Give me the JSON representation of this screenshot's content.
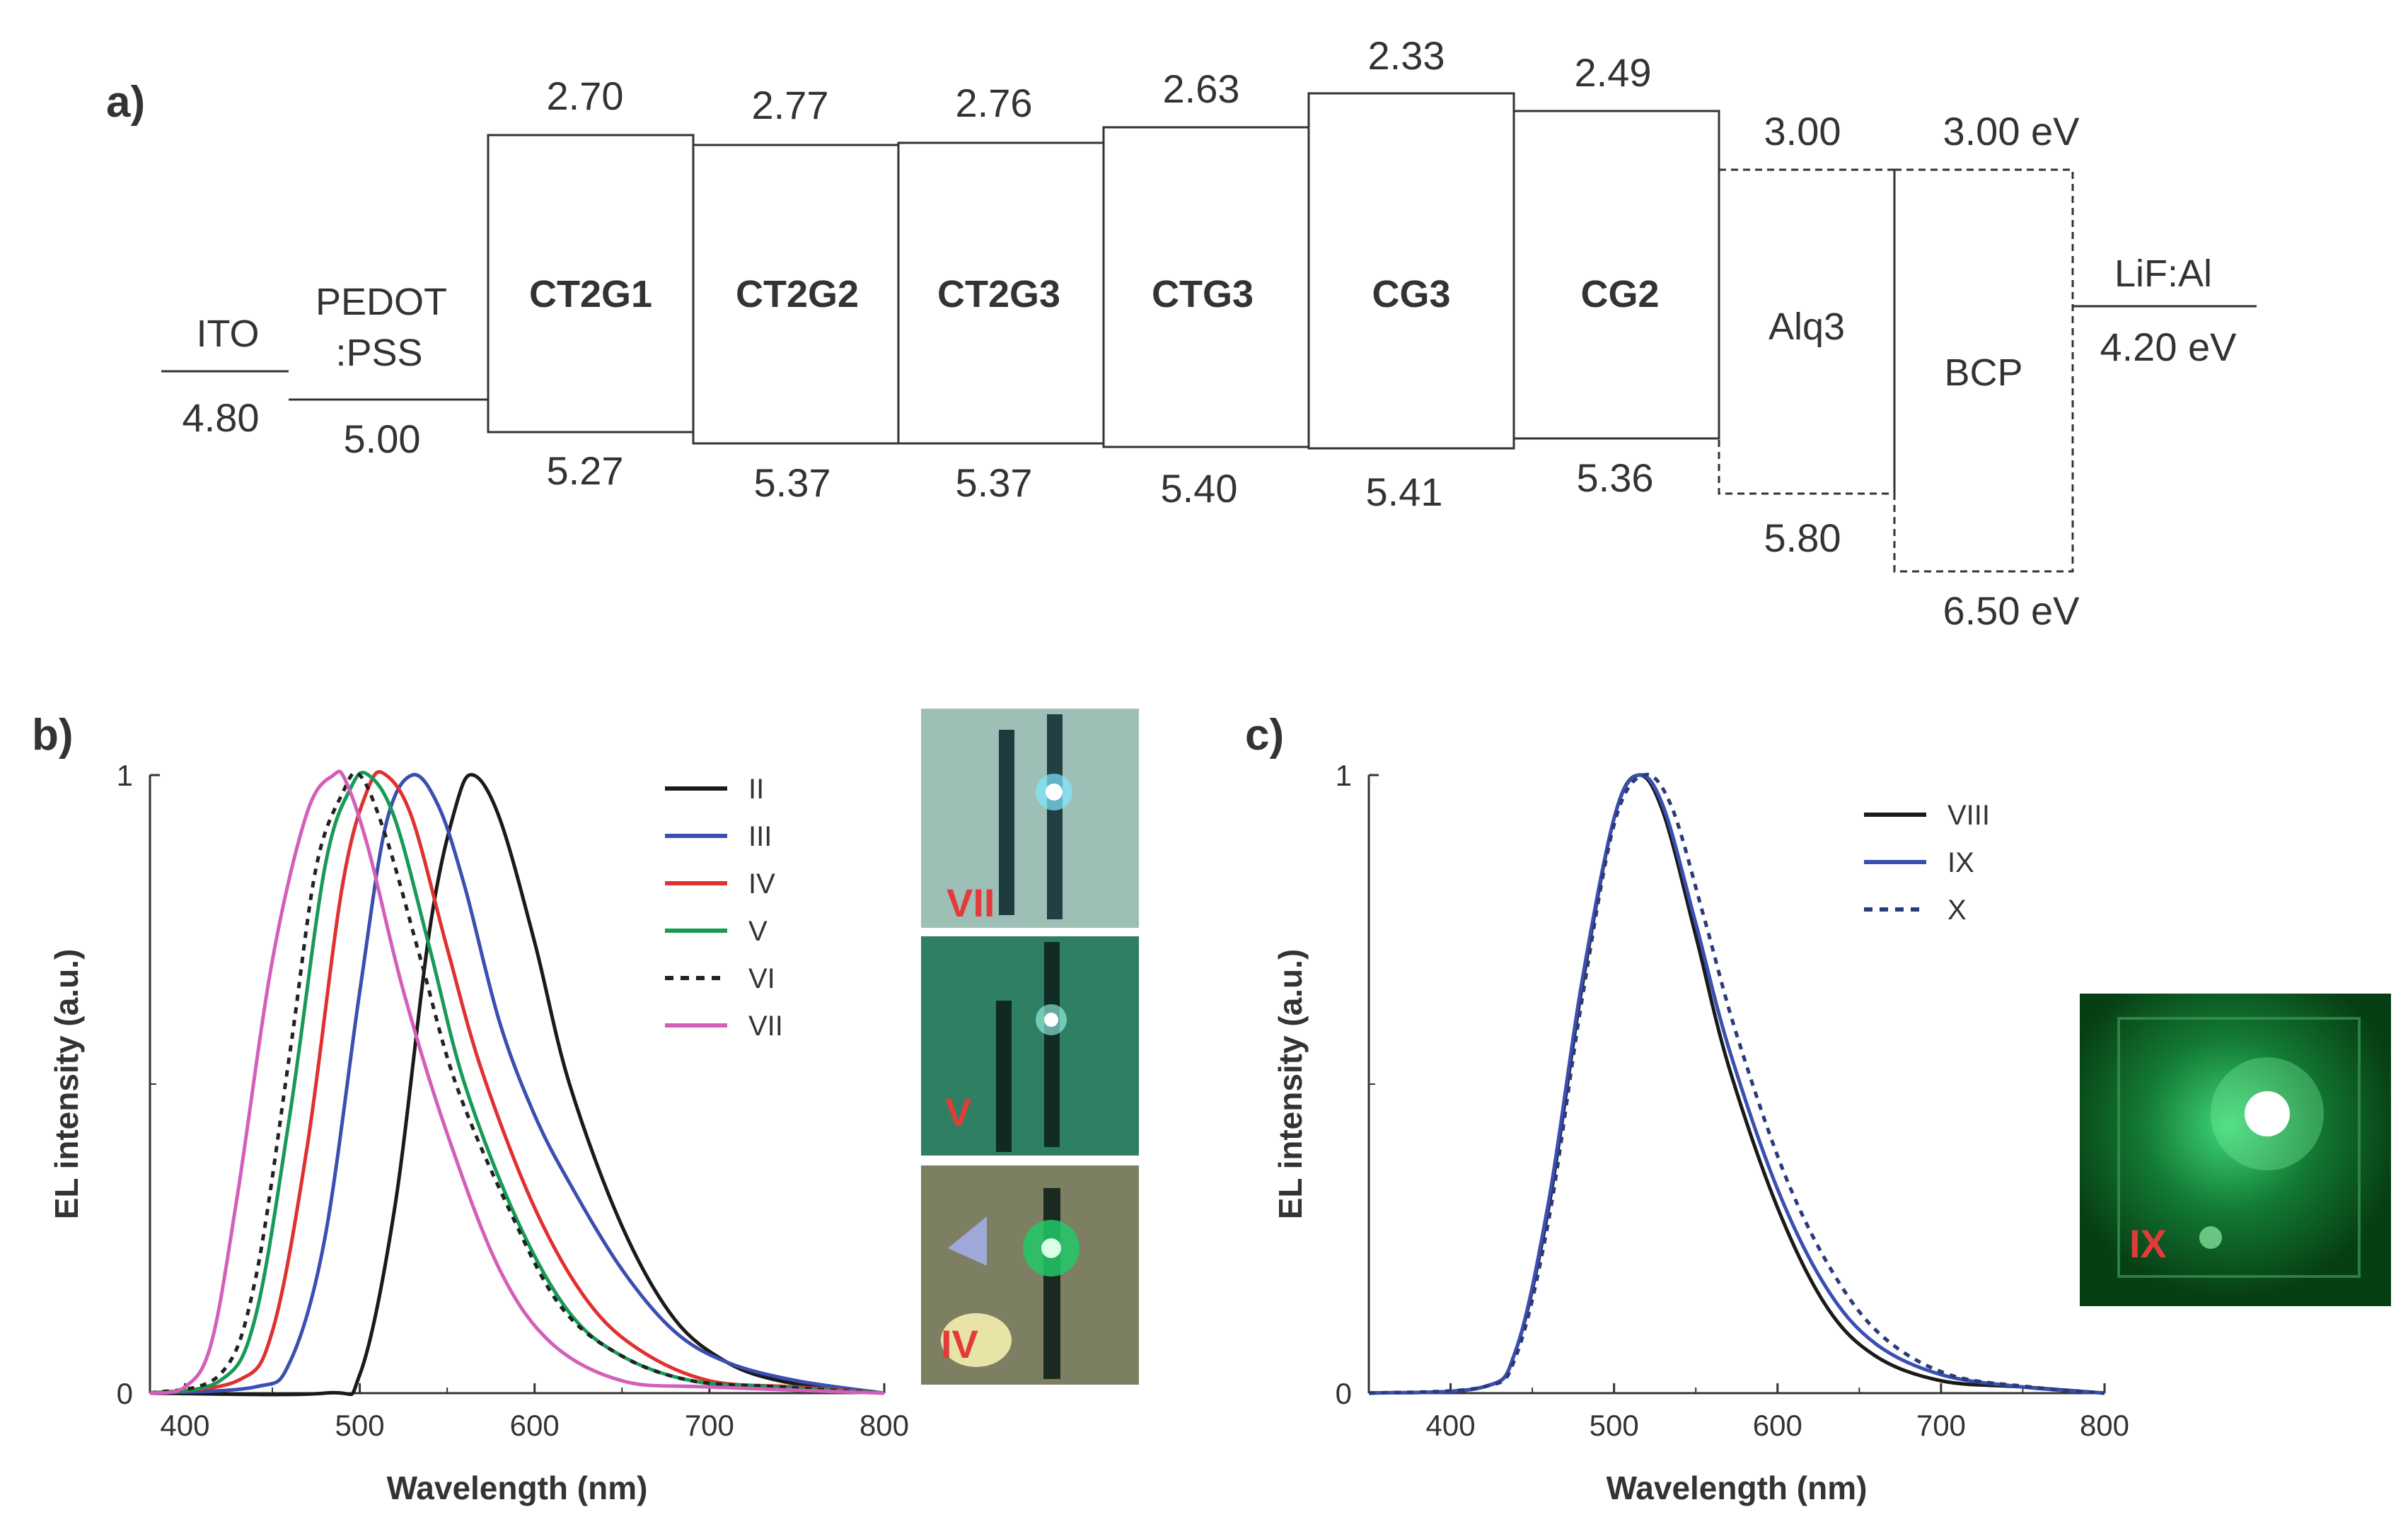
{
  "panel_labels": {
    "a": "a)",
    "b": "b)",
    "c": "c)"
  },
  "energy_diagram": {
    "layers": [
      {
        "id": "ito",
        "name": "ITO",
        "homo": "4.80"
      },
      {
        "id": "pedot",
        "name": "PEDOT\n:PSS",
        "homo": "5.00"
      },
      {
        "id": "ct2g1",
        "name": "CT2G1",
        "lumo": "2.70",
        "homo": "5.27"
      },
      {
        "id": "ct2g2",
        "name": "CT2G2",
        "lumo": "2.77",
        "homo": "5.37"
      },
      {
        "id": "ct2g3",
        "name": "CT2G3",
        "lumo": "2.76",
        "homo": "5.37"
      },
      {
        "id": "ctg3",
        "name": "CTG3",
        "lumo": "2.63",
        "homo": "5.40"
      },
      {
        "id": "cg3",
        "name": "CG3",
        "lumo": "2.33",
        "homo": "5.41"
      },
      {
        "id": "cg2",
        "name": "CG2",
        "lumo": "2.49",
        "homo": "5.36"
      },
      {
        "id": "alq3",
        "name": "Alq3",
        "lumo": "3.00",
        "homo": "5.80"
      },
      {
        "id": "bcp",
        "name": "BCP",
        "lumo": "3.00 eV",
        "homo": "6.50 eV"
      },
      {
        "id": "lif",
        "name": "LiF:Al",
        "homo": "4.20 eV"
      }
    ]
  },
  "photos": {
    "vii": {
      "label": "VII",
      "tint": "#8fb3a8"
    },
    "v": {
      "label": "V",
      "tint": "#2f7f63"
    },
    "iv": {
      "label": "IV",
      "tint": "#8d8f6e"
    },
    "ix": {
      "label": "IX",
      "tint": "#0c5a1c"
    }
  },
  "chart_data": [
    {
      "panel": "b",
      "type": "line",
      "xlabel": "Wavelength (nm)",
      "ylabel": "EL intensity (a.u.)",
      "xlim": [
        380,
        800
      ],
      "ylim": [
        0,
        1
      ],
      "xticks": [
        "400",
        "500",
        "600",
        "700",
        "800"
      ],
      "yticks": [
        "0",
        "1"
      ],
      "legend_position": "top-right",
      "series": [
        {
          "name": "II",
          "color": "#1a1a1a",
          "dash": "solid",
          "x": [
            380,
            480,
            500,
            520,
            540,
            555,
            565,
            580,
            600,
            620,
            650,
            680,
            710,
            740,
            770,
            800
          ],
          "y": [
            0,
            0,
            0.03,
            0.3,
            0.75,
            0.95,
            1.0,
            0.93,
            0.73,
            0.5,
            0.27,
            0.12,
            0.05,
            0.02,
            0.01,
            0
          ]
        },
        {
          "name": "III",
          "color": "#3a4fb0",
          "dash": "solid",
          "x": [
            380,
            440,
            460,
            480,
            500,
            515,
            530,
            545,
            560,
            580,
            600,
            620,
            650,
            680,
            710,
            750,
            800
          ],
          "y": [
            0,
            0.01,
            0.05,
            0.25,
            0.65,
            0.92,
            1.0,
            0.95,
            0.82,
            0.6,
            0.45,
            0.34,
            0.2,
            0.1,
            0.05,
            0.02,
            0
          ]
        },
        {
          "name": "IV",
          "color": "#e03030",
          "dash": "solid",
          "x": [
            380,
            430,
            450,
            470,
            490,
            505,
            515,
            530,
            550,
            570,
            600,
            630,
            660,
            700,
            750,
            800
          ],
          "y": [
            0,
            0.02,
            0.1,
            0.4,
            0.82,
            0.98,
            1.0,
            0.93,
            0.72,
            0.52,
            0.3,
            0.15,
            0.07,
            0.02,
            0.01,
            0
          ]
        },
        {
          "name": "V",
          "color": "#169a55",
          "dash": "solid",
          "x": [
            380,
            420,
            440,
            460,
            480,
            495,
            505,
            520,
            540,
            560,
            590,
            620,
            650,
            690,
            740,
            800
          ],
          "y": [
            0,
            0.02,
            0.12,
            0.45,
            0.85,
            0.98,
            1.0,
            0.93,
            0.72,
            0.5,
            0.28,
            0.13,
            0.06,
            0.02,
            0.01,
            0
          ]
        },
        {
          "name": "VI",
          "color": "#222222",
          "dash": "dotted",
          "x": [
            380,
            420,
            440,
            460,
            475,
            490,
            500,
            515,
            535,
            555,
            585,
            615,
            650,
            690,
            740,
            800
          ],
          "y": [
            0,
            0.03,
            0.18,
            0.55,
            0.85,
            0.97,
            1.0,
            0.9,
            0.7,
            0.5,
            0.3,
            0.14,
            0.06,
            0.02,
            0.01,
            0
          ]
        },
        {
          "name": "VII",
          "color": "#d35fb8",
          "dash": "solid",
          "x": [
            380,
            400,
            415,
            430,
            450,
            470,
            485,
            492,
            505,
            525,
            550,
            580,
            610,
            650,
            700,
            800
          ],
          "y": [
            0,
            0.01,
            0.08,
            0.32,
            0.7,
            0.94,
            1.0,
            0.99,
            0.88,
            0.65,
            0.42,
            0.2,
            0.08,
            0.02,
            0.01,
            0
          ]
        }
      ]
    },
    {
      "panel": "c",
      "type": "line",
      "xlabel": "Wavelength (nm)",
      "ylabel": "EL intensity (a.u.)",
      "xlim": [
        350,
        800
      ],
      "ylim": [
        0,
        1
      ],
      "xticks": [
        "400",
        "500",
        "600",
        "700",
        "800"
      ],
      "yticks": [
        "0",
        "1"
      ],
      "legend_position": "top-right",
      "series": [
        {
          "name": "VIII",
          "color": "#1a1a1a",
          "dash": "solid",
          "x": [
            350,
            420,
            440,
            460,
            480,
            500,
            515,
            530,
            550,
            570,
            600,
            630,
            660,
            700,
            750,
            800
          ],
          "y": [
            0,
            0.01,
            0.07,
            0.3,
            0.65,
            0.93,
            1.0,
            0.94,
            0.74,
            0.53,
            0.3,
            0.14,
            0.06,
            0.02,
            0.01,
            0
          ]
        },
        {
          "name": "IX",
          "color": "#3a4fb0",
          "dash": "solid",
          "x": [
            350,
            420,
            440,
            460,
            480,
            500,
            515,
            530,
            550,
            570,
            600,
            630,
            660,
            700,
            750,
            800
          ],
          "y": [
            0,
            0.01,
            0.07,
            0.31,
            0.66,
            0.93,
            1.0,
            0.95,
            0.76,
            0.56,
            0.33,
            0.17,
            0.08,
            0.03,
            0.01,
            0
          ]
        },
        {
          "name": "X",
          "color": "#2a3a7a",
          "dash": "dotted",
          "x": [
            350,
            420,
            440,
            460,
            480,
            500,
            518,
            535,
            555,
            575,
            605,
            635,
            665,
            705,
            755,
            800
          ],
          "y": [
            0,
            0.01,
            0.06,
            0.28,
            0.63,
            0.92,
            1.0,
            0.95,
            0.77,
            0.58,
            0.35,
            0.19,
            0.09,
            0.03,
            0.01,
            0
          ]
        }
      ]
    }
  ]
}
